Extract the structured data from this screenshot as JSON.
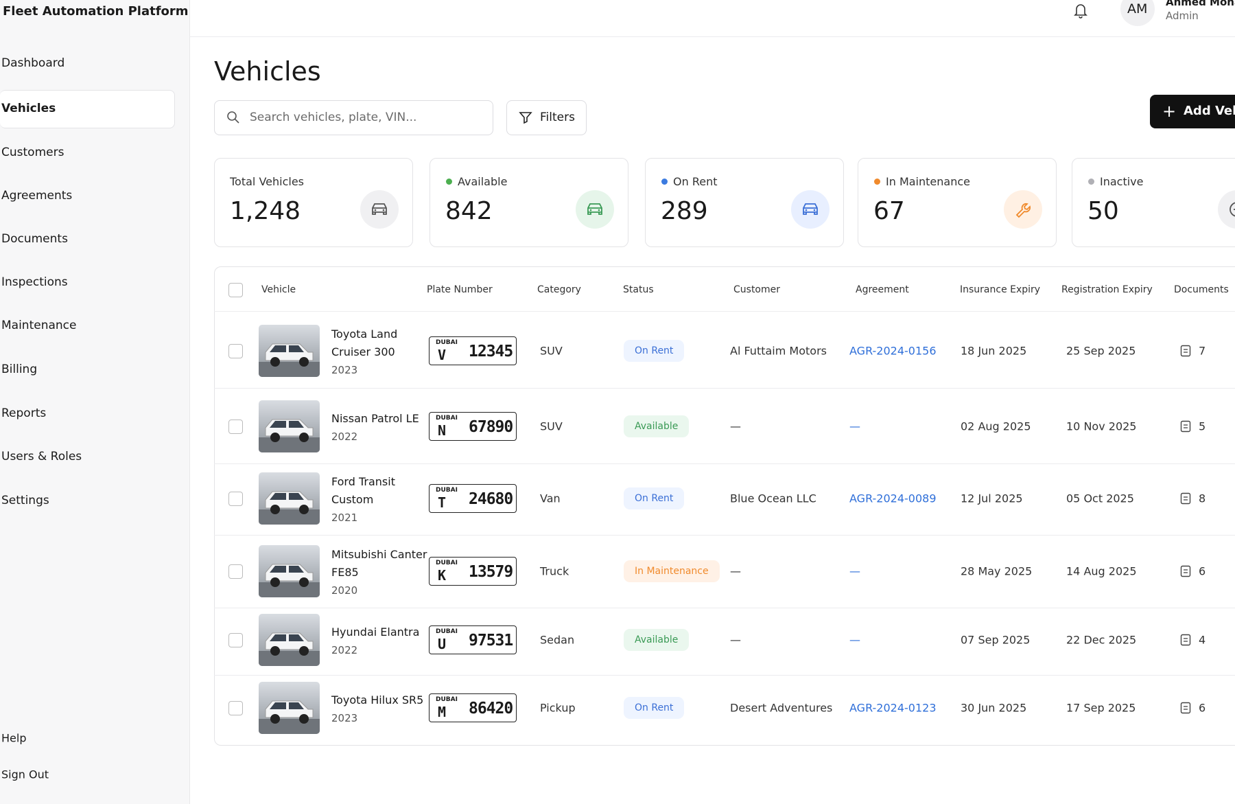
{
  "sidebar": {
    "title": "Fleet Automation Platform",
    "nav": [
      "Dashboard",
      "Vehicles",
      "Customers",
      "Agreements",
      "Documents",
      "Inspections",
      "Maintenance",
      "Billing",
      "Reports",
      "Users & Roles",
      "Settings"
    ],
    "footer": [
      "Help",
      "Sign Out"
    ]
  },
  "header": {
    "initials": "AM",
    "name": "Ahmed Moha",
    "role": "Admin"
  },
  "page": {
    "title": "Vehicles",
    "search_placeholder": "Search vehicles, plate, VIN...",
    "filters": "Filters",
    "add_button": "Add Vehi"
  },
  "stats": [
    {
      "label": "Total Vehicles",
      "value": "1,248"
    },
    {
      "label": "Available",
      "value": "842"
    },
    {
      "label": "On Rent",
      "value": "289"
    },
    {
      "label": "In Maintenance",
      "value": "67"
    },
    {
      "label": "Inactive",
      "value": "50"
    }
  ],
  "table": {
    "columns": [
      "Vehicle",
      "Plate Number",
      "Category",
      "Status",
      "Customer",
      "Agreement",
      "Insurance Expiry",
      "Registration Expiry",
      "Documents"
    ],
    "rows": [
      {
        "name": "Toyota Land Cruiser 300",
        "year": "2023",
        "plate_city": "DUBAI",
        "plate_letter": "V",
        "plate_number": "12345",
        "category": "SUV",
        "status": "On Rent",
        "customer": "Al Futtaim Motors",
        "agreement": "AGR-2024-0156",
        "insurance": "18 Jun 2025",
        "registration": "25 Sep 2025",
        "documents": "7"
      },
      {
        "name": "Nissan Patrol LE",
        "year": "2022",
        "plate_city": "DUBAI",
        "plate_letter": "N",
        "plate_number": "67890",
        "category": "SUV",
        "status": "Available",
        "customer": "—",
        "agreement": "—",
        "insurance": "02 Aug 2025",
        "registration": "10 Nov 2025",
        "documents": "5"
      },
      {
        "name": "Ford Transit Custom",
        "year": "2021",
        "plate_city": "DUBAI",
        "plate_letter": "T",
        "plate_number": "24680",
        "category": "Van",
        "status": "On Rent",
        "customer": "Blue Ocean LLC",
        "agreement": "AGR-2024-0089",
        "insurance": "12 Jul 2025",
        "registration": "05 Oct 2025",
        "documents": "8"
      },
      {
        "name": "Mitsubishi Canter FE85",
        "year": "2020",
        "plate_city": "DUBAI",
        "plate_letter": "K",
        "plate_number": "13579",
        "category": "Truck",
        "status": "In Maintenance",
        "customer": "—",
        "agreement": "—",
        "insurance": "28 May 2025",
        "registration": "14 Aug 2025",
        "documents": "6"
      },
      {
        "name": "Hyundai Elantra",
        "year": "2022",
        "plate_city": "DUBAI",
        "plate_letter": "U",
        "plate_number": "97531",
        "category": "Sedan",
        "status": "Available",
        "customer": "—",
        "agreement": "—",
        "insurance": "07 Sep 2025",
        "registration": "22 Dec 2025",
        "documents": "4"
      },
      {
        "name": "Toyota Hilux SR5",
        "year": "2023",
        "plate_city": "DUBAI",
        "plate_letter": "M",
        "plate_number": "86420",
        "category": "Pickup",
        "status": "On Rent",
        "customer": "Desert Adventures",
        "agreement": "AGR-2024-0123",
        "insurance": "30 Jun 2025",
        "registration": "17 Sep 2025",
        "documents": "6"
      }
    ]
  }
}
